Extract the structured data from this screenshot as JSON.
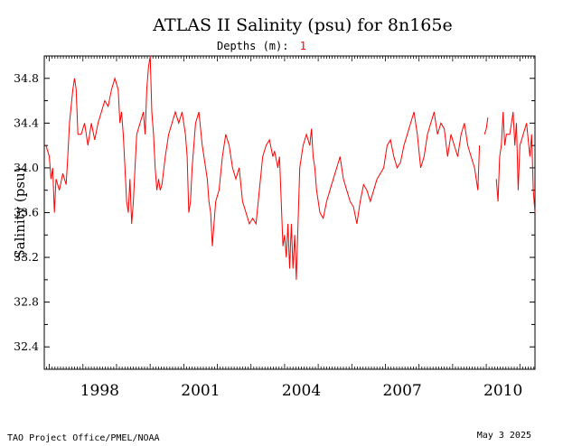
{
  "chart_data": {
    "type": "line",
    "title": "ATLAS II Salinity (psu) for 8n165e",
    "depth_label": "Depths (m):",
    "depth_value": "1",
    "ylabel": "Salinity (psu)",
    "xlabel": "",
    "xlim": [
      1996.85,
      2011.45
    ],
    "ylim": [
      32.2,
      35.0
    ],
    "yticks": [
      32.4,
      32.8,
      33.2,
      33.6,
      34.0,
      34.4,
      34.8
    ],
    "ytick_labels": [
      "32.4",
      "32.8",
      "33.2",
      "33.6",
      "34.0",
      "34.4",
      "34.8"
    ],
    "xticks": [
      1998,
      2001,
      2004,
      2007,
      2010
    ],
    "xtick_labels": [
      "1998",
      "2001",
      "2004",
      "2007",
      "2010"
    ],
    "grid": false,
    "series": [
      {
        "color": "#ff0000",
        "segments": [
          [
            [
              1996.9,
              34.2
            ],
            [
              1997.0,
              34.1
            ],
            [
              1997.05,
              33.9
            ],
            [
              1997.1,
              34.0
            ],
            [
              1997.15,
              33.6
            ],
            [
              1997.2,
              33.9
            ],
            [
              1997.3,
              33.8
            ],
            [
              1997.4,
              33.95
            ],
            [
              1997.5,
              33.85
            ],
            [
              1997.55,
              34.1
            ],
            [
              1997.6,
              34.4
            ],
            [
              1997.7,
              34.7
            ],
            [
              1997.75,
              34.8
            ],
            [
              1997.8,
              34.7
            ],
            [
              1997.85,
              34.3
            ],
            [
              1997.95,
              34.3
            ],
            [
              1998.05,
              34.4
            ],
            [
              1998.15,
              34.2
            ],
            [
              1998.25,
              34.4
            ],
            [
              1998.35,
              34.25
            ],
            [
              1998.45,
              34.4
            ],
            [
              1998.55,
              34.5
            ],
            [
              1998.65,
              34.6
            ],
            [
              1998.75,
              34.55
            ],
            [
              1998.85,
              34.7
            ],
            [
              1998.95,
              34.8
            ],
            [
              1999.05,
              34.7
            ],
            [
              1999.1,
              34.4
            ],
            [
              1999.15,
              34.5
            ],
            [
              1999.2,
              34.3
            ],
            [
              1999.25,
              34.0
            ],
            [
              1999.3,
              33.7
            ],
            [
              1999.35,
              33.6
            ],
            [
              1999.4,
              33.9
            ],
            [
              1999.45,
              33.5
            ],
            [
              1999.5,
              33.7
            ],
            [
              1999.55,
              34.0
            ],
            [
              1999.6,
              34.3
            ],
            [
              1999.7,
              34.4
            ],
            [
              1999.8,
              34.5
            ],
            [
              1999.85,
              34.3
            ],
            [
              1999.9,
              34.7
            ],
            [
              1999.95,
              34.9
            ],
            [
              2000.0,
              35.0
            ],
            [
              2000.05,
              34.5
            ],
            [
              2000.1,
              34.3
            ],
            [
              2000.15,
              34.0
            ],
            [
              2000.2,
              33.8
            ],
            [
              2000.25,
              33.9
            ],
            [
              2000.3,
              33.8
            ],
            [
              2000.35,
              33.85
            ],
            [
              2000.45,
              34.1
            ],
            [
              2000.55,
              34.3
            ],
            [
              2000.65,
              34.4
            ],
            [
              2000.75,
              34.5
            ],
            [
              2000.85,
              34.4
            ],
            [
              2000.95,
              34.5
            ],
            [
              2001.05,
              34.3
            ],
            [
              2001.1,
              34.1
            ],
            [
              2001.15,
              33.6
            ],
            [
              2001.2,
              33.7
            ],
            [
              2001.25,
              34.0
            ],
            [
              2001.3,
              34.2
            ],
            [
              2001.35,
              34.4
            ],
            [
              2001.45,
              34.5
            ],
            [
              2001.55,
              34.2
            ],
            [
              2001.6,
              34.1
            ],
            [
              2001.7,
              33.9
            ],
            [
              2001.75,
              33.7
            ],
            [
              2001.8,
              33.6
            ],
            [
              2001.85,
              33.3
            ],
            [
              2001.9,
              33.5
            ],
            [
              2001.95,
              33.7
            ],
            [
              2002.05,
              33.8
            ],
            [
              2002.15,
              34.1
            ],
            [
              2002.25,
              34.3
            ],
            [
              2002.35,
              34.2
            ],
            [
              2002.45,
              34.0
            ],
            [
              2002.55,
              33.9
            ],
            [
              2002.65,
              34.0
            ],
            [
              2002.75,
              33.7
            ],
            [
              2002.85,
              33.6
            ],
            [
              2002.95,
              33.5
            ],
            [
              2003.05,
              33.55
            ],
            [
              2003.15,
              33.5
            ],
            [
              2003.25,
              33.8
            ],
            [
              2003.35,
              34.1
            ],
            [
              2003.45,
              34.2
            ],
            [
              2003.55,
              34.25
            ],
            [
              2003.65,
              34.1
            ],
            [
              2003.7,
              34.15
            ],
            [
              2003.8,
              34.0
            ],
            [
              2003.85,
              34.1
            ],
            [
              2003.9,
              33.7
            ],
            [
              2003.95,
              33.3
            ],
            [
              2004.0,
              33.4
            ],
            [
              2004.05,
              33.2
            ],
            [
              2004.1,
              33.5
            ],
            [
              2004.15,
              33.1
            ],
            [
              2004.2,
              33.5
            ],
            [
              2004.25,
              33.1
            ],
            [
              2004.3,
              33.4
            ],
            [
              2004.35,
              33.0
            ],
            [
              2004.45,
              34.0
            ],
            [
              2004.55,
              34.2
            ],
            [
              2004.65,
              34.3
            ],
            [
              2004.75,
              34.2
            ],
            [
              2004.8,
              34.35
            ],
            [
              2004.85,
              34.1
            ],
            [
              2004.9,
              34.0
            ],
            [
              2004.95,
              33.8
            ],
            [
              2005.05,
              33.6
            ],
            [
              2005.15,
              33.55
            ],
            [
              2005.25,
              33.7
            ],
            [
              2005.35,
              33.8
            ],
            [
              2005.45,
              33.9
            ],
            [
              2005.55,
              34.0
            ],
            [
              2005.65,
              34.1
            ],
            [
              2005.75,
              33.9
            ],
            [
              2005.85,
              33.8
            ],
            [
              2005.95,
              33.7
            ],
            [
              2006.05,
              33.65
            ],
            [
              2006.15,
              33.5
            ],
            [
              2006.25,
              33.7
            ],
            [
              2006.35,
              33.85
            ],
            [
              2006.45,
              33.8
            ],
            [
              2006.55,
              33.7
            ],
            [
              2006.65,
              33.8
            ],
            [
              2006.75,
              33.9
            ],
            [
              2006.85,
              33.95
            ],
            [
              2006.95,
              34.0
            ],
            [
              2007.05,
              34.2
            ],
            [
              2007.15,
              34.25
            ],
            [
              2007.25,
              34.1
            ],
            [
              2007.35,
              34.0
            ],
            [
              2007.45,
              34.05
            ],
            [
              2007.55,
              34.2
            ],
            [
              2007.65,
              34.3
            ],
            [
              2007.75,
              34.4
            ],
            [
              2007.85,
              34.5
            ],
            [
              2007.95,
              34.3
            ],
            [
              2008.05,
              34.0
            ],
            [
              2008.15,
              34.1
            ],
            [
              2008.25,
              34.3
            ],
            [
              2008.35,
              34.4
            ],
            [
              2008.45,
              34.5
            ],
            [
              2008.55,
              34.3
            ],
            [
              2008.65,
              34.4
            ],
            [
              2008.75,
              34.35
            ],
            [
              2008.85,
              34.1
            ],
            [
              2008.95,
              34.3
            ],
            [
              2009.05,
              34.2
            ],
            [
              2009.15,
              34.1
            ],
            [
              2009.25,
              34.3
            ],
            [
              2009.35,
              34.4
            ],
            [
              2009.45,
              34.2
            ],
            [
              2009.55,
              34.1
            ],
            [
              2009.65,
              34.0
            ],
            [
              2009.75,
              33.8
            ],
            [
              2009.8,
              34.2
            ]
          ],
          [
            [
              2009.95,
              34.3
            ],
            [
              2010.0,
              34.35
            ],
            [
              2010.05,
              34.45
            ]
          ],
          [
            [
              2010.3,
              33.9
            ],
            [
              2010.35,
              33.7
            ],
            [
              2010.4,
              34.1
            ],
            [
              2010.45,
              34.2
            ],
            [
              2010.5,
              34.5
            ],
            [
              2010.55,
              34.2
            ],
            [
              2010.6,
              34.3
            ],
            [
              2010.7,
              34.3
            ],
            [
              2010.8,
              34.5
            ],
            [
              2010.85,
              34.2
            ],
            [
              2010.9,
              34.4
            ],
            [
              2010.95,
              33.8
            ],
            [
              2011.0,
              34.2
            ],
            [
              2011.1,
              34.3
            ],
            [
              2011.2,
              34.4
            ],
            [
              2011.3,
              34.1
            ],
            [
              2011.35,
              34.3
            ],
            [
              2011.4,
              33.8
            ],
            [
              2011.45,
              33.6
            ]
          ]
        ]
      }
    ]
  },
  "footer": {
    "left": "TAO Project Office/PMEL/NOAA",
    "right": "May  3 2025"
  }
}
